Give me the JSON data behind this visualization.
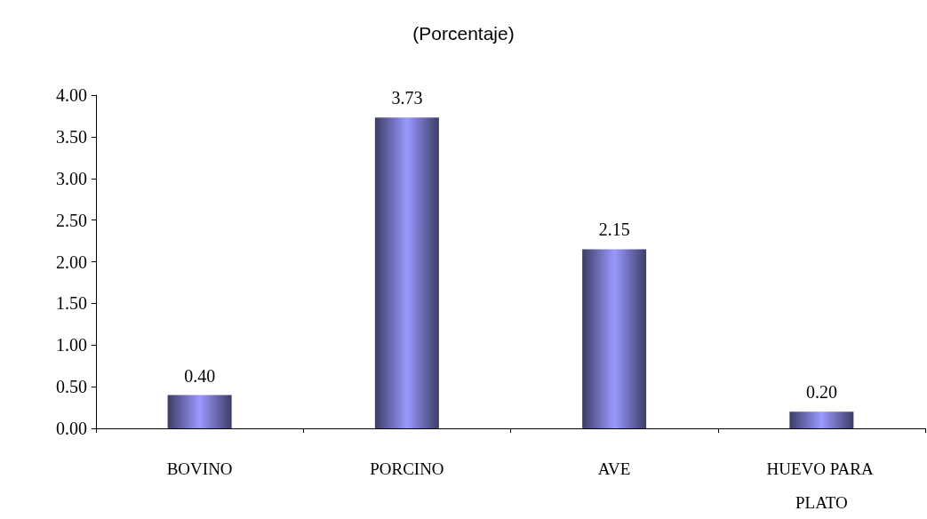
{
  "chart_data": {
    "type": "bar",
    "title": "(Porcentaje)",
    "categories": [
      "BOVINO",
      "PORCINO",
      "AVE",
      "HUEVO PARA PLATO"
    ],
    "values": [
      0.4,
      3.73,
      2.15,
      0.2
    ],
    "color": "#9999ff",
    "value_labels": [
      "0.40",
      "3.73",
      "2.15",
      "0.20"
    ],
    "ylim": [
      0,
      4
    ],
    "yticks": [
      {
        "value": 0,
        "label": "0.00"
      },
      {
        "value": 0.5,
        "label": "0.50"
      },
      {
        "value": 1,
        "label": "1.00"
      },
      {
        "value": 1.5,
        "label": "1.50"
      },
      {
        "value": 2,
        "label": "2.00"
      },
      {
        "value": 2.5,
        "label": "2.50"
      },
      {
        "value": 3,
        "label": "3.00"
      },
      {
        "value": 3.5,
        "label": "3.50"
      },
      {
        "value": 4,
        "label": "4.00"
      }
    ]
  }
}
